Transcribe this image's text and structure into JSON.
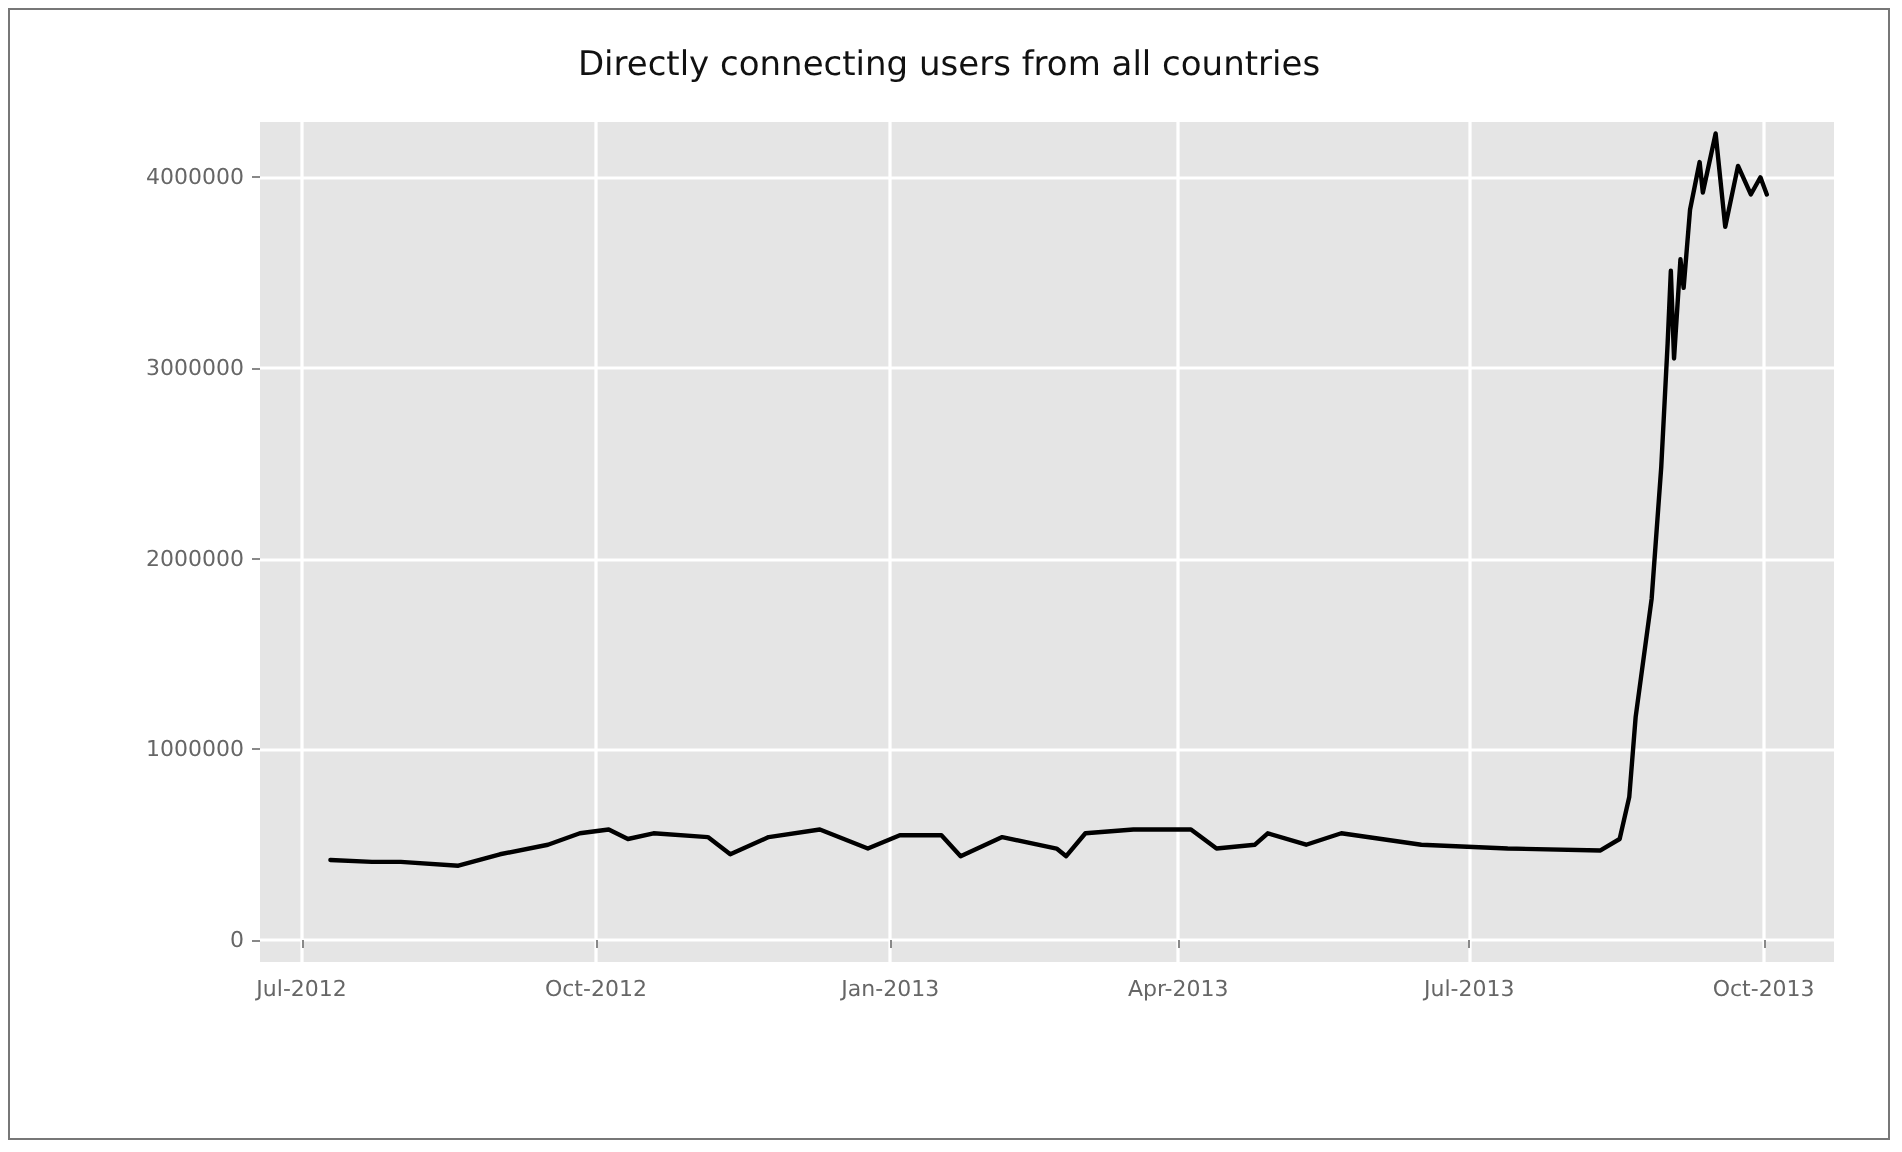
{
  "chart_data": {
    "type": "line",
    "title": "Directly connecting users from all countries",
    "x": [
      "2012-07-10",
      "2012-07-23",
      "2012-08-01",
      "2012-08-19",
      "2012-09-01",
      "2012-09-16",
      "2012-09-26",
      "2012-10-05",
      "2012-10-11",
      "2012-10-19",
      "2012-11-05",
      "2012-11-12",
      "2012-11-24",
      "2012-12-10",
      "2012-12-25",
      "2013-01-04",
      "2013-01-17",
      "2013-01-23",
      "2013-02-05",
      "2013-02-22",
      "2013-02-25",
      "2013-03-03",
      "2013-03-18",
      "2013-04-05",
      "2013-04-13",
      "2013-04-25",
      "2013-04-29",
      "2013-05-11",
      "2013-05-22",
      "2013-06-16",
      "2013-07-13",
      "2013-08-11",
      "2013-08-17",
      "2013-08-20",
      "2013-08-22",
      "2013-08-27",
      "2013-08-30",
      "2013-09-01",
      "2013-09-02",
      "2013-09-03",
      "2013-09-05",
      "2013-09-06",
      "2013-09-08",
      "2013-09-11",
      "2013-09-12",
      "2013-09-16",
      "2013-09-19",
      "2013-09-23",
      "2013-09-27",
      "2013-09-30",
      "2013-10-02"
    ],
    "series": [
      {
        "color": "#000000",
        "values": [
          420000,
          410000,
          410000,
          390000,
          450000,
          500000,
          560000,
          580000,
          530000,
          560000,
          540000,
          450000,
          540000,
          580000,
          480000,
          550000,
          550000,
          440000,
          540000,
          480000,
          440000,
          560000,
          580000,
          580000,
          480000,
          500000,
          560000,
          500000,
          560000,
          500000,
          480000,
          470000,
          530000,
          750000,
          1170000,
          1790000,
          2480000,
          3130000,
          3510000,
          3050000,
          3570000,
          3420000,
          3830000,
          4080000,
          3920000,
          4230000,
          3740000,
          4060000,
          3910000,
          4000000,
          3910000
        ]
      }
    ],
    "xlim": [
      "2012-06-18",
      "2013-10-23"
    ],
    "xticks": [
      {
        "value": "2012-07-01",
        "label": "Jul-2012"
      },
      {
        "value": "2012-10-01",
        "label": "Oct-2012"
      },
      {
        "value": "2013-01-01",
        "label": "Jan-2013"
      },
      {
        "value": "2013-04-01",
        "label": "Apr-2013"
      },
      {
        "value": "2013-07-01",
        "label": "Jul-2013"
      },
      {
        "value": "2013-10-01",
        "label": "Oct-2013"
      }
    ],
    "ylim": [
      -115000,
      4290000
    ],
    "yticks": [
      0,
      1000000,
      2000000,
      3000000,
      4000000
    ],
    "grid": true,
    "marker": "none",
    "line_style": "solid"
  }
}
